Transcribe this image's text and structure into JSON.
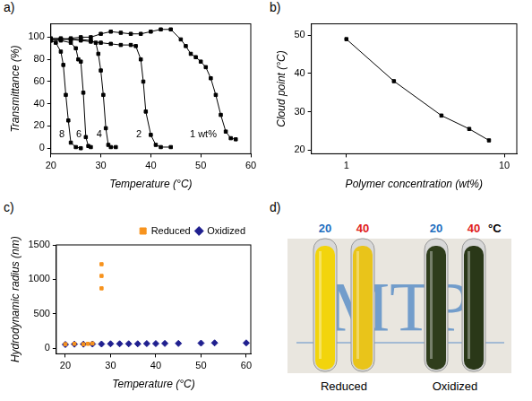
{
  "chart_data": [
    {
      "panel_label": "a)",
      "type": "line",
      "x_label": "Temperature (°C)",
      "y_label": "Transmittance (%)",
      "xlim": [
        20,
        60
      ],
      "xticks": [
        20,
        30,
        40,
        50,
        60
      ],
      "ylim": [
        -5,
        112
      ],
      "yticks": [
        0,
        20,
        40,
        60,
        80,
        100
      ],
      "grid": false,
      "series": [
        {
          "color": "#000000",
          "marker": "square",
          "x": [
            20,
            21,
            22,
            22.5,
            23,
            23.5,
            24,
            25,
            26
          ],
          "values": [
            97,
            95,
            87,
            75,
            48,
            25,
            5,
            1,
            0
          ]
        },
        {
          "color": "#000000",
          "marker": "square",
          "x": [
            20,
            22,
            24,
            25,
            25.5,
            26,
            26.5,
            27,
            27.5,
            28
          ],
          "values": [
            98,
            97,
            95,
            90,
            80,
            78,
            50,
            10,
            2,
            1
          ]
        },
        {
          "color": "#000000",
          "marker": "square",
          "x": [
            20,
            22,
            24,
            26,
            28,
            29,
            29.5,
            30,
            30.5,
            31,
            31.5,
            32,
            33
          ],
          "values": [
            99,
            99,
            98,
            98,
            97,
            95,
            85,
            70,
            48,
            18,
            3,
            1,
            1
          ]
        },
        {
          "color": "#000000",
          "marker": "square",
          "x": [
            20,
            22,
            24,
            26,
            28,
            30,
            32,
            34,
            36,
            37,
            38,
            38.5,
            39,
            40,
            41,
            42,
            44
          ],
          "values": [
            98,
            98,
            98,
            97,
            96,
            95,
            94,
            93,
            93,
            92,
            80,
            60,
            33,
            12,
            3,
            1,
            1
          ]
        },
        {
          "color": "#000000",
          "marker": "square",
          "x": [
            20,
            22,
            24,
            26,
            28,
            30,
            32,
            34,
            36,
            38,
            40,
            42,
            44,
            46,
            47,
            48,
            49,
            50,
            51,
            52,
            53,
            54,
            55,
            56,
            57
          ],
          "values": [
            97,
            98,
            99,
            100,
            100,
            103,
            105,
            104,
            103,
            103,
            105,
            107,
            107,
            98,
            92,
            85,
            82,
            78,
            73,
            63,
            48,
            30,
            15,
            9,
            8
          ]
        }
      ],
      "annotations": [
        {
          "text": "8",
          "x": 22.2,
          "y": 12
        },
        {
          "text": "6",
          "x": 25.6,
          "y": 12
        },
        {
          "text": "4",
          "x": 29.7,
          "y": 12
        },
        {
          "text": "2",
          "x": 37.6,
          "y": 12
        },
        {
          "text": "1 wt%",
          "x": 50.5,
          "y": 12
        }
      ]
    },
    {
      "panel_label": "b)",
      "type": "line",
      "x_label": "Polymer concentration (wt%)",
      "y_label": "Cloud point (°C)",
      "log": "x",
      "xlim": [
        0.6,
        12
      ],
      "xticks": [
        1,
        10
      ],
      "ylim": [
        19,
        53
      ],
      "yticks": [
        20,
        30,
        40,
        50
      ],
      "grid": false,
      "series": [
        {
          "color": "#000000",
          "marker": "square",
          "x": [
            1,
            2,
            4,
            6,
            8
          ],
          "values": [
            49,
            38,
            29,
            25.5,
            22.5
          ]
        }
      ]
    },
    {
      "panel_label": "c)",
      "type": "scatter",
      "x_label": "Temperature (°C)",
      "y_label": "Hydrodynamic radius (nm)",
      "xlim": [
        18,
        61
      ],
      "xticks": [
        20,
        30,
        40,
        50,
        60
      ],
      "ylim": [
        -80,
        1500
      ],
      "yticks": [
        0,
        500,
        1000,
        1500
      ],
      "grid": false,
      "legend": "top-right",
      "series": [
        {
          "name": "Reduced",
          "color": "#f7931e",
          "marker": "square",
          "x": [
            20,
            22,
            24,
            25,
            26,
            28,
            28,
            28
          ],
          "values": [
            60,
            65,
            60,
            65,
            70,
            870,
            1050,
            1220
          ]
        },
        {
          "name": "Oxidized",
          "color": "#1f1f8f",
          "marker": "diamond",
          "x": [
            20,
            22,
            24,
            26,
            28,
            30,
            32,
            34,
            36,
            38,
            40,
            42,
            45,
            50,
            53,
            60
          ],
          "values": [
            55,
            60,
            60,
            62,
            62,
            65,
            65,
            65,
            65,
            68,
            68,
            70,
            70,
            75,
            78,
            78
          ]
        }
      ]
    }
  ],
  "photo": {
    "panel_label": "d)",
    "background_text": "MTP",
    "unit": "°C",
    "groups": [
      "Reduced",
      "Oxidized"
    ],
    "tubes": [
      {
        "label": "20",
        "label_color": "#1f6fbf",
        "group": "Reduced",
        "color": "#f2d40c"
      },
      {
        "label": "40",
        "label_color": "#e0201b",
        "group": "Reduced",
        "color": "#e9c41a"
      },
      {
        "label": "20",
        "label_color": "#1f6fbf",
        "group": "Oxidized",
        "color": "#2f3d1c"
      },
      {
        "label": "40",
        "label_color": "#e0201b",
        "group": "Oxidized",
        "color": "#2a3818"
      }
    ]
  }
}
